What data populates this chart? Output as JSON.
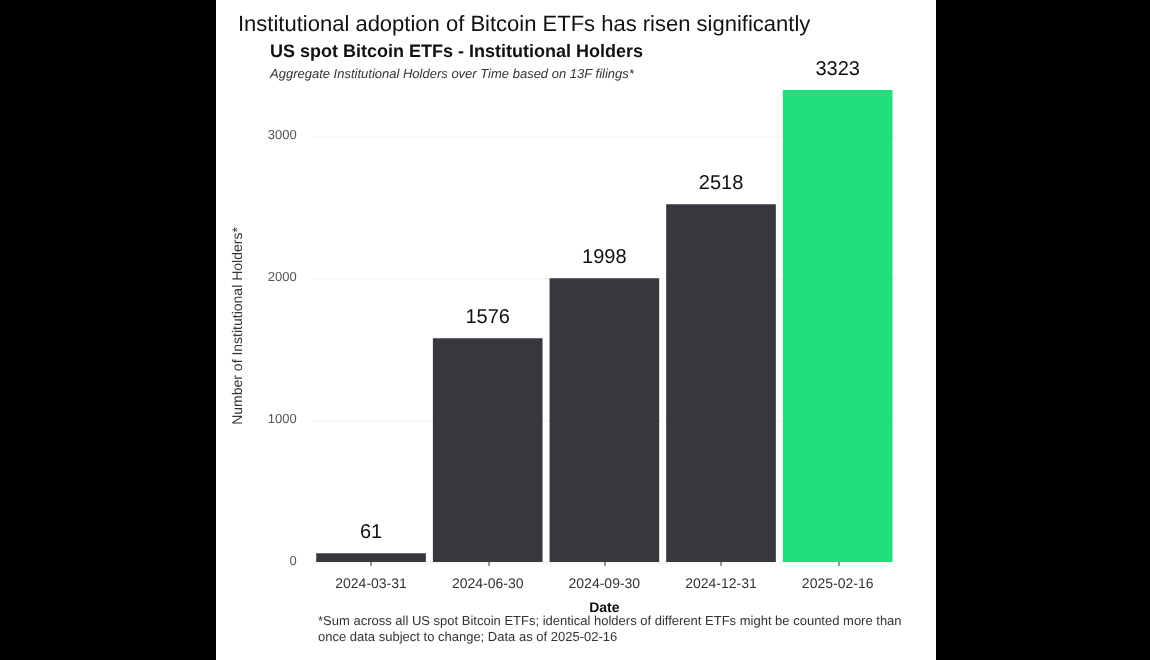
{
  "chart_data": {
    "type": "bar",
    "title": "Institutional adoption of Bitcoin ETFs has risen significantly",
    "subtitle": "US spot Bitcoin ETFs - Institutional Holders",
    "annotations": [
      "Aggregate Institutional Holders over Time based on 13F filings*",
      "*Sum across all US spot Bitcoin ETFs; identical holders of different ETFs might be counted more than once data subject to change; Data as of 2025-02-16"
    ],
    "xlabel": "Date",
    "ylabel": "Number of Institutional Holders*",
    "categories": [
      "2024-03-31",
      "2024-06-30",
      "2024-09-30",
      "2024-12-31",
      "2025-02-16"
    ],
    "values": [
      61,
      1576,
      1998,
      2518,
      3323
    ],
    "colors": [
      "#36383d",
      "#36383d",
      "#36383d",
      "#36383d",
      "#1fe07a"
    ],
    "ylim": [
      0,
      3323
    ],
    "yticks": [
      0,
      1000,
      2000,
      3000
    ],
    "grid": "y",
    "data_labels": true
  }
}
